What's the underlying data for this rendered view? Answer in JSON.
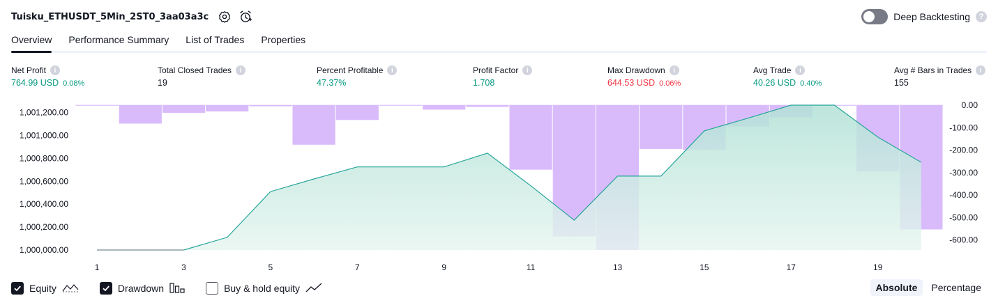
{
  "header": {
    "title": "Tuisku_ETHUSDT_5Min_2ST0_3aa03a3c",
    "deep_backtesting_label": "Deep Backtesting",
    "help_glyph": "?"
  },
  "tabs": [
    {
      "label": "Overview",
      "active": true
    },
    {
      "label": "Performance Summary"
    },
    {
      "label": "List of Trades"
    },
    {
      "label": "Properties"
    }
  ],
  "info_glyph": "i",
  "metrics": [
    {
      "label": "Net Profit",
      "value": "764.99 USD",
      "sub": "0.08%",
      "color": "green"
    },
    {
      "label": "Total Closed Trades",
      "value": "19",
      "sub": "",
      "color": "black"
    },
    {
      "label": "Percent Profitable",
      "value": "47.37%",
      "sub": "",
      "color": "green"
    },
    {
      "label": "Profit Factor",
      "value": "1.708",
      "sub": "",
      "color": "green"
    },
    {
      "label": "Max Drawdown",
      "value": "644.53 USD",
      "sub": "0.06%",
      "color": "red"
    },
    {
      "label": "Avg Trade",
      "value": "40.26 USD",
      "sub": "0.40%",
      "color": "green"
    },
    {
      "label": "Avg # Bars in Trades",
      "value": "155",
      "sub": "",
      "color": "black"
    }
  ],
  "chart_data": {
    "type": "area",
    "x": [
      1,
      2,
      3,
      4,
      5,
      6,
      7,
      8,
      9,
      10,
      11,
      12,
      13,
      14,
      15,
      16,
      17,
      18,
      19,
      20
    ],
    "x_ticks": [
      "1",
      "3",
      "5",
      "7",
      "9",
      "11",
      "13",
      "15",
      "17",
      "19"
    ],
    "left_ticks": [
      "1,001,200.00",
      "1,001,000.00",
      "1,000,800.00",
      "1,000,600.00",
      "1,000,400.00",
      "1,000,200.00",
      "1,000,000.00"
    ],
    "left_tick_values": [
      1001200,
      1001000,
      1000800,
      1000600,
      1000400,
      1000200,
      1000000
    ],
    "right_ticks": [
      "0.00",
      "-100.00",
      "-200.00",
      "-300.00",
      "-400.00",
      "-500.00",
      "-600.00"
    ],
    "right_tick_values": [
      0,
      -100,
      -200,
      -300,
      -400,
      -500,
      -600
    ],
    "equity_ylim": [
      1000000,
      1001264
    ],
    "drawdown_ylim": [
      -644.53,
      0
    ],
    "series": [
      {
        "name": "Equity",
        "values": [
          1000000,
          1000000,
          1000000,
          1000110,
          1000510,
          1000620,
          1000725,
          1000725,
          1000725,
          1000845,
          1000560,
          1000260,
          1000645,
          1000645,
          1001040,
          1001150,
          1001264,
          1001264,
          1000985,
          1000765
        ]
      },
      {
        "name": "Drawdown",
        "values": [
          0,
          -82,
          -34,
          -28,
          -5,
          -176,
          -66,
          0,
          -20,
          -8,
          -287,
          -584,
          -644.53,
          -195,
          -200,
          -95,
          -55,
          0,
          -295,
          -553
        ]
      }
    ],
    "colors": {
      "equity_line": "#26a69a",
      "equity_fill": "#bfe6dd",
      "drawdown_fill": "#d9bbfb"
    }
  },
  "footer": {
    "legend": [
      {
        "label": "Equity",
        "checked": true
      },
      {
        "label": "Drawdown",
        "checked": true
      },
      {
        "label": "Buy & hold equity",
        "checked": false
      }
    ],
    "modes": [
      {
        "label": "Absolute",
        "active": true
      },
      {
        "label": "Percentage",
        "active": false
      }
    ]
  }
}
